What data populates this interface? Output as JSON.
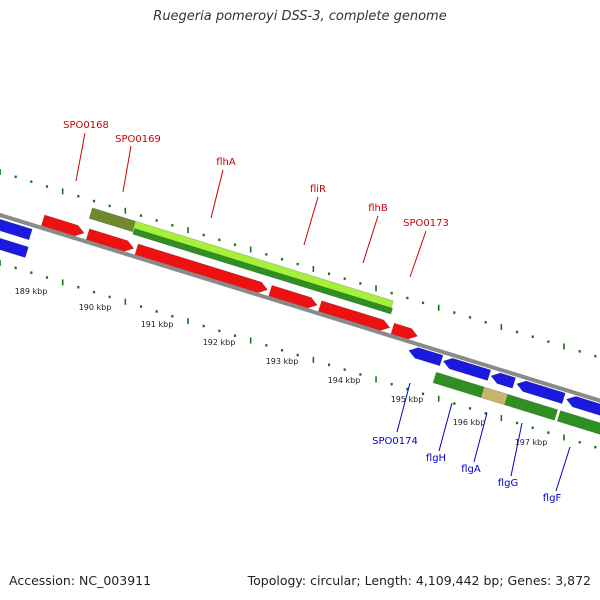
{
  "title": "Ruegeria pomeroyi DSS-3, complete genome",
  "footer": {
    "accession": "Accession: NC_003911",
    "summary": "Topology: circular; Length: 4,109,442 bp; Genes: 3,872"
  },
  "colors": {
    "forward_gene": "#ee1111",
    "reverse_gene": "#1a1adf",
    "rna_operon_light": "#a5f03b",
    "rna_operon_dark": "#2f8f22",
    "olive_segment": "#6f8a2e",
    "tan_segment": "#c8b46a",
    "backbone": "#8a8a8a",
    "ticks": "#117711",
    "forward_label": "#cc0000",
    "reverse_label": "#0000cc",
    "text": "#333333"
  },
  "scale_labels": [
    "189 kbp",
    "190 kbp",
    "191 kbp",
    "192 kbp",
    "193 kbp",
    "194 kbp",
    "195 kbp",
    "196 kbp",
    "197 kbp"
  ],
  "forward_labels": [
    "SPO0168",
    "SPO0169",
    "flhA",
    "fliR",
    "flhB",
    "SPO0173"
  ],
  "reverse_labels": [
    "SPO0174",
    "flgH",
    "flgA",
    "flgG",
    "flgF"
  ]
}
